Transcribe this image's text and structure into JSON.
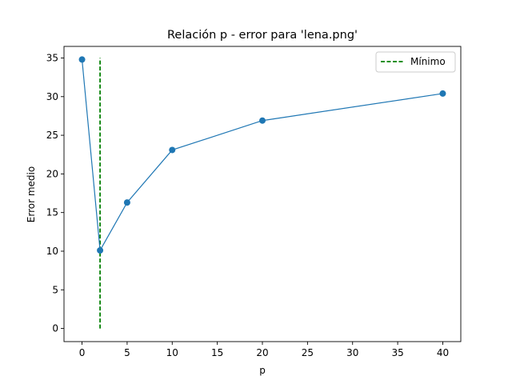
{
  "chart_data": {
    "type": "line",
    "title": "Relación p - error para 'lena.png'",
    "xlabel": "p",
    "ylabel": "Error medio",
    "xlim": [
      -2,
      42
    ],
    "ylim": [
      -1.7,
      36.5
    ],
    "xticks": [
      0,
      5,
      10,
      15,
      20,
      25,
      30,
      35,
      40
    ],
    "yticks": [
      0,
      5,
      10,
      15,
      20,
      25,
      30,
      35
    ],
    "grid": false,
    "legend_position": "top-right",
    "series": [
      {
        "x": [
          0,
          2,
          5,
          10,
          20,
          40
        ],
        "values": [
          34.8,
          10.1,
          16.3,
          23.1,
          26.9,
          30.4
        ],
        "color": "#1f77b4",
        "marker": "circle"
      }
    ],
    "reference_lines": [
      {
        "name": "Mínimo",
        "orientation": "vertical",
        "x": 2,
        "y_range": [
          0,
          35
        ],
        "style": "dashed",
        "color": "#008000"
      }
    ]
  }
}
